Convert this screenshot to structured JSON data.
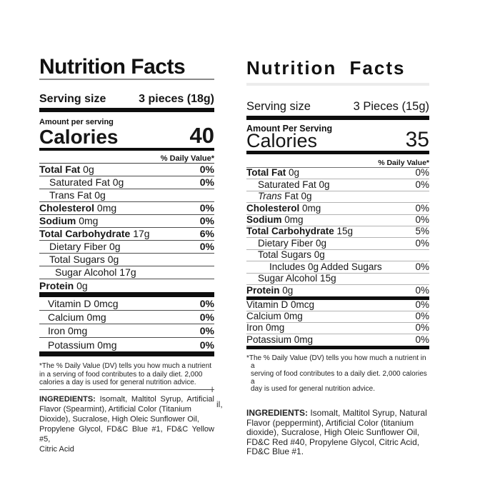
{
  "colors": {
    "text": "#161616",
    "thick_bar": "#0e0e0e",
    "left_separator": "#4d4d4d",
    "right_separator": "#b3b3b3",
    "background": "#ffffff"
  },
  "left_label": {
    "title": "Nutrition Facts",
    "serving": {
      "label": "Serving size",
      "value": "3 pieces (18g)"
    },
    "amount_per_serving": "Amount per serving",
    "calories": {
      "label": "Calories",
      "value": "40"
    },
    "daily_value_header": "% Daily Value*",
    "rows": [
      {
        "b": "Total Fat",
        "r": " 0g",
        "v": "0%"
      },
      {
        "r": "Saturated Fat 0g",
        "v": "0%"
      },
      {
        "r": "Trans Fat 0g",
        "v": ""
      },
      {
        "b": "Cholesterol",
        "r": " 0mg",
        "v": "0%"
      },
      {
        "b": "Sodium",
        "r": " 0mg",
        "v": "0%"
      },
      {
        "b": "Total Carbohydrate",
        "r": " 17g",
        "v": "6%"
      },
      {
        "r": "Dietary Fiber 0g",
        "v": "0%"
      },
      {
        "r": "Total Sugars 0g",
        "v": ""
      },
      {
        "r": "Sugar Alcohol 17g",
        "v": ""
      },
      {
        "b": "Protein",
        "r": " 0g",
        "v": ""
      }
    ],
    "micros": [
      {
        "r": "Vitamin D 0mcg",
        "v": "0%"
      },
      {
        "r": "Calcium 0mg",
        "v": "0%"
      },
      {
        "r": "Iron 0mg",
        "v": "0%"
      },
      {
        "r": "Potassium 0mg",
        "v": "0%"
      }
    ],
    "footnote_lines": [
      "*The % Daily Value (DV) tells you how much a nutrient",
      "in a serving of food contributes to a daily diet. 2,000",
      "calories a day is used for general nutrition advice."
    ],
    "ingredients": {
      "label": "INGREDIENTS:",
      "line1_rest": " Isomalt, Maltitol Syrup, Artificial",
      "line2": "Flavor (Spearmint), Artificial Color (Titanium",
      "line3": "Dioxide), Sucralose, High Oleic Sunflower Oil,",
      "line4": "Propylene Glycol, FD&C Blue #1, FD&C Yellow #5,",
      "line5": "Citric Acid"
    }
  },
  "right_label": {
    "title": "Nutrition Facts",
    "serving": {
      "label": "Serving size",
      "value": "3 Pieces (15g)"
    },
    "amount_per_serving": "Amount Per Serving",
    "calories": {
      "label": "Calories",
      "value": "35"
    },
    "daily_value_header": "% Daily Value*",
    "rows": [
      {
        "b": "Total Fat",
        "r": " 0g",
        "v": "0%"
      },
      {
        "r": "Saturated Fat 0g",
        "v": "0%"
      },
      {
        "i": "Trans",
        "r": " Fat 0g",
        "v": ""
      },
      {
        "b": "Cholesterol",
        "r": " 0mg",
        "v": "0%"
      },
      {
        "b": "Sodium",
        "r": " 0mg",
        "v": "0%"
      },
      {
        "b": "Total Carbohydrate",
        "r": " 15g",
        "v": "5%"
      },
      {
        "r": "Dietary Fiber 0g",
        "v": "0%"
      },
      {
        "r": "Total Sugars 0g",
        "v": ""
      },
      {
        "r": "Includes 0g Added Sugars",
        "v": "0%"
      },
      {
        "r": "Sugar Alcohol 15g",
        "v": ""
      },
      {
        "b": "Protein",
        "r": " 0g",
        "v": "0%"
      }
    ],
    "micros": [
      {
        "r": "Vitamin D 0mcg",
        "v": "0%"
      },
      {
        "r": "Calcium 0mg",
        "v": "0%"
      },
      {
        "r": "Iron 0mg",
        "v": "0%"
      },
      {
        "r": "Potassium 0mg",
        "v": "0%"
      }
    ],
    "footnote_lines": [
      "*The % Daily Value (DV) tells you how much a nutrient in a",
      "serving of food contributes to a daily diet. 2,000 calories a",
      "day is used for general nutrition advice."
    ],
    "ingredients": {
      "label": "INGREDIENTS:",
      "line1_rest": " Isomalt, Maltitol Syrup, Natural",
      "line2": "Flavor (peppermint), Artificial Color (titanium",
      "line3": "dioxide), Sucralose, High Oleic Sunflower Oil,",
      "line4": "FD&C Red #40, Propylene Glycol, Citric Acid,",
      "line5": "FD&C Blue #1."
    }
  },
  "stray_fragments": {
    "fragment_1": "l",
    "fragment_2": "il,"
  }
}
